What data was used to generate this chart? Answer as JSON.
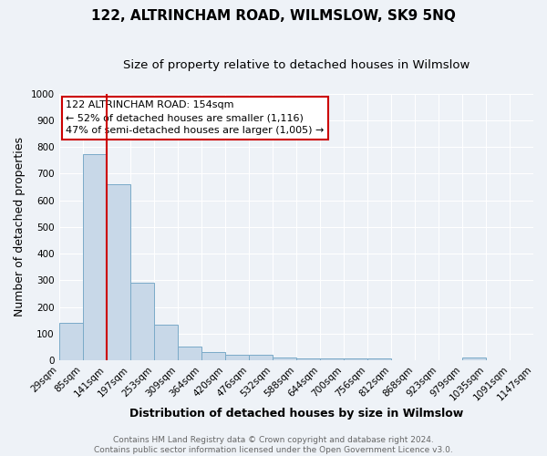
{
  "title": "122, ALTRINCHAM ROAD, WILMSLOW, SK9 5NQ",
  "subtitle": "Size of property relative to detached houses in Wilmslow",
  "xlabel": "Distribution of detached houses by size in Wilmslow",
  "ylabel": "Number of detached properties",
  "bar_color": "#c8d8e8",
  "bar_edge_color": "#7aaac8",
  "bar_values": [
    140,
    775,
    660,
    290,
    135,
    52,
    30,
    22,
    22,
    10,
    7,
    7,
    7,
    7,
    0,
    0,
    0,
    12,
    0,
    0
  ],
  "bar_labels": [
    "29sqm",
    "85sqm",
    "141sqm",
    "197sqm",
    "253sqm",
    "309sqm",
    "364sqm",
    "420sqm",
    "476sqm",
    "532sqm",
    "588sqm",
    "644sqm",
    "700sqm",
    "756sqm",
    "812sqm",
    "868sqm",
    "923sqm",
    "979sqm",
    "1035sqm",
    "1091sqm",
    "1147sqm"
  ],
  "ylim": [
    0,
    1000
  ],
  "yticks": [
    0,
    100,
    200,
    300,
    400,
    500,
    600,
    700,
    800,
    900,
    1000
  ],
  "vline_color": "#cc0000",
  "annotation_box_text": "122 ALTRINCHAM ROAD: 154sqm\n← 52% of detached houses are smaller (1,116)\n47% of semi-detached houses are larger (1,005) →",
  "background_color": "#eef2f7",
  "grid_color": "#ffffff",
  "footnote": "Contains HM Land Registry data © Crown copyright and database right 2024.\nContains public sector information licensed under the Open Government Licence v3.0.",
  "title_fontsize": 11,
  "subtitle_fontsize": 9.5,
  "xlabel_fontsize": 9,
  "ylabel_fontsize": 9,
  "tick_fontsize": 7.5,
  "annot_fontsize": 8
}
